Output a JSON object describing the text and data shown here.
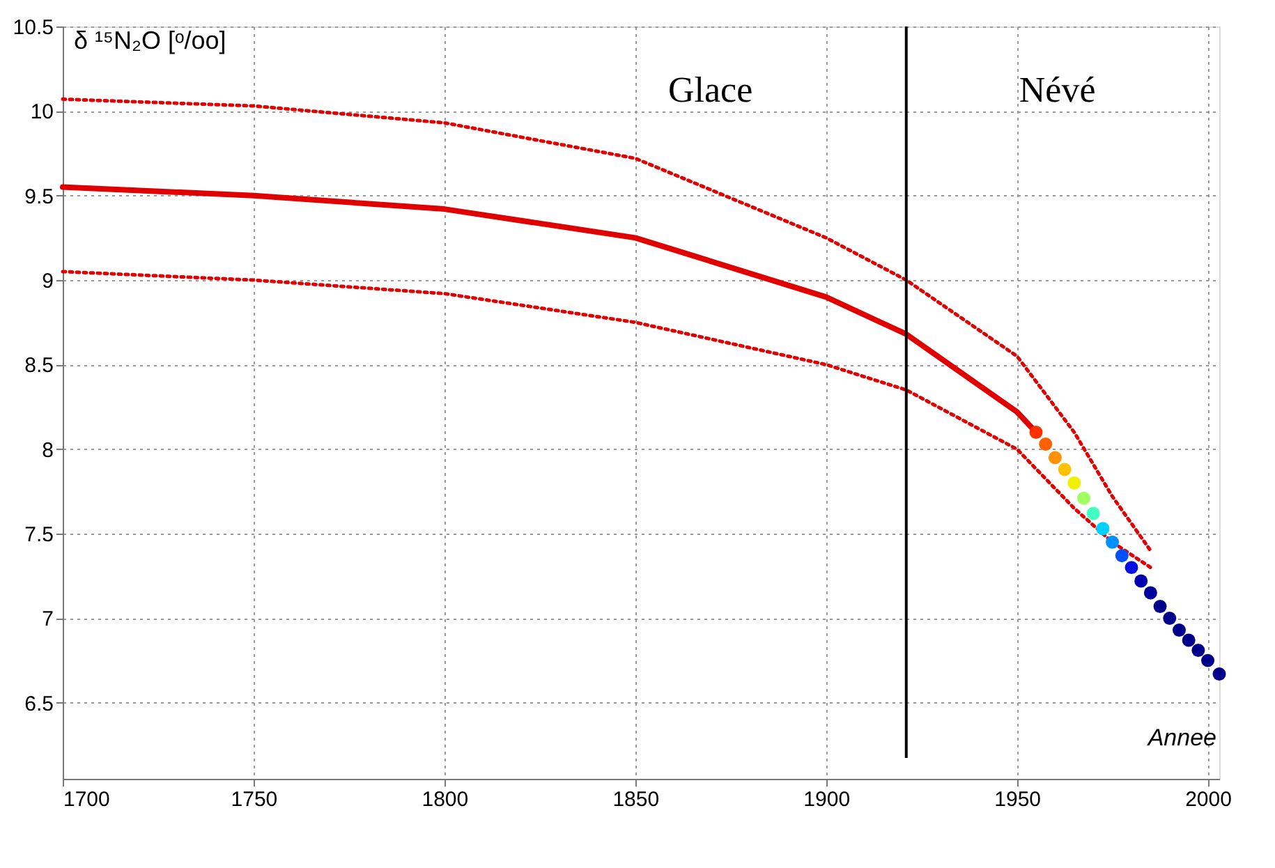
{
  "chart_data": {
    "type": "line",
    "xlabel": "Annee",
    "ylabel": "δ ¹⁵N₂O [ᵒ/oo]",
    "xlim": [
      1700,
      2003
    ],
    "ylim": [
      6.05,
      10.5
    ],
    "xticks": [
      1700,
      1750,
      1800,
      1850,
      1900,
      1950,
      2000
    ],
    "yticks": [
      6.5,
      7,
      7.5,
      8,
      8.5,
      9,
      9.5,
      10,
      10.5
    ],
    "grid": true,
    "series": [
      {
        "type": "line",
        "color": "#e00000",
        "line_style": "dotted",
        "x": [
          1700,
          1750,
          1800,
          1850,
          1900,
          1921,
          1950,
          1965,
          1975,
          1985
        ],
        "values": [
          10.07,
          10.03,
          9.93,
          9.72,
          9.25,
          9.0,
          8.55,
          8.1,
          7.72,
          7.4
        ]
      },
      {
        "type": "line",
        "color": "#e00000",
        "line_style": "dotted",
        "x": [
          1700,
          1750,
          1800,
          1850,
          1900,
          1921,
          1950,
          1965,
          1975,
          1985
        ],
        "values": [
          9.05,
          9.0,
          8.92,
          8.75,
          8.5,
          8.35,
          8.0,
          7.65,
          7.45,
          7.3
        ]
      },
      {
        "color": "#e00000",
        "x": [
          1700,
          1750,
          1800,
          1850,
          1900,
          1921,
          1950,
          1955
        ],
        "values": [
          9.55,
          9.5,
          9.42,
          9.25,
          8.9,
          8.68,
          8.22,
          8.1
        ]
      },
      {
        "type": "scatter",
        "x": [
          1955,
          1957.5,
          1960,
          1962.5,
          1965,
          1967.5,
          1970,
          1972.5,
          1975,
          1977.5,
          1980,
          1982.5,
          1985,
          1987.5,
          1990,
          1992.5,
          1995,
          1997.5,
          2000,
          2003
        ],
        "values": [
          8.1,
          8.03,
          7.95,
          7.88,
          7.8,
          7.71,
          7.62,
          7.53,
          7.45,
          7.37,
          7.3,
          7.22,
          7.15,
          7.07,
          7.0,
          6.93,
          6.87,
          6.81,
          6.75,
          6.67
        ],
        "colors": [
          "#ff3000",
          "#ff6000",
          "#ff9000",
          "#ffc000",
          "#f0f000",
          "#a0ff60",
          "#40ffc0",
          "#00d0ff",
          "#0090ff",
          "#0050ff",
          "#0010e0",
          "#0000b0",
          "#00009a",
          "#00008b",
          "#00008b",
          "#00008b",
          "#00008b",
          "#00008b",
          "#00008b",
          "#00008b"
        ]
      }
    ],
    "ref_lines": [
      {
        "axis": "x",
        "value": 1921,
        "color": "#000000"
      }
    ],
    "annotations": [
      "Glace",
      "Névé"
    ]
  }
}
